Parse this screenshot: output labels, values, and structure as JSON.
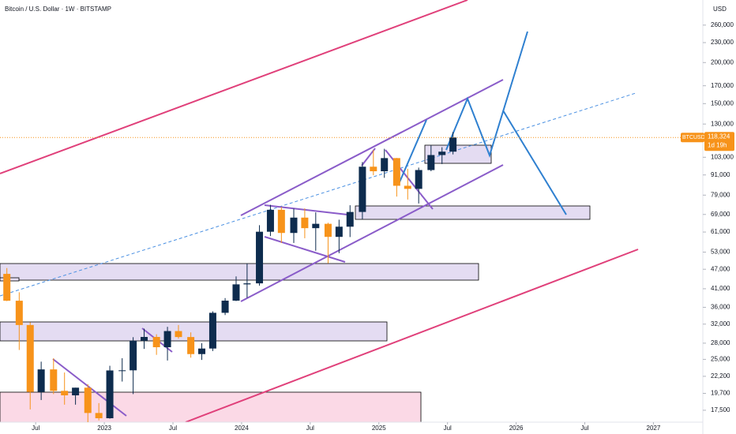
{
  "chart_data": {
    "type": "candlestick",
    "title": "Bitcoin / U.S. Dollar · 1W · BITSTAMP",
    "currency": "USD",
    "log_scale": true,
    "up_color": "#0e2c4e",
    "down_color": "#f7931a",
    "x": [
      2022.29,
      2022.38,
      2022.46,
      2022.54,
      2022.63,
      2022.71,
      2022.79,
      2022.88,
      2022.96,
      2023.04,
      2023.13,
      2023.21,
      2023.29,
      2023.38,
      2023.46,
      2023.54,
      2023.63,
      2023.71,
      2023.79,
      2023.88,
      2023.96,
      2024.04,
      2024.13,
      2024.21,
      2024.29,
      2024.38,
      2024.46,
      2024.54,
      2024.63,
      2024.71,
      2024.79,
      2024.88,
      2024.96,
      2025.04,
      2025.13,
      2025.21,
      2025.29,
      2025.38,
      2025.46,
      2025.54
    ],
    "open": [
      45500,
      37700,
      31800,
      19900,
      23300,
      20050,
      19430,
      20500,
      17170,
      16550,
      23130,
      23150,
      28480,
      29250,
      27220,
      30480,
      29230,
      25940,
      26970,
      34640,
      37720,
      42280,
      42580,
      61130,
      71290,
      60610,
      67490,
      62680,
      64620,
      58970,
      63330,
      70220,
      96410,
      93390,
      102400,
      84350,
      82550,
      94190,
      104610,
      107130
    ],
    "high": [
      47400,
      40000,
      32400,
      24600,
      25200,
      22800,
      20500,
      21000,
      18400,
      23900,
      25200,
      29200,
      31000,
      29800,
      31400,
      31800,
      30200,
      28000,
      35000,
      38400,
      44700,
      48900,
      64000,
      73800,
      72700,
      71900,
      72000,
      70000,
      65100,
      66500,
      73600,
      99600,
      108300,
      109300,
      102500,
      95000,
      95800,
      111900,
      110500,
      123000
    ],
    "low": [
      37600,
      26700,
      17600,
      18800,
      19600,
      18200,
      18200,
      15500,
      16300,
      16500,
      21400,
      19600,
      26900,
      25800,
      24800,
      28900,
      25300,
      24900,
      26500,
      34100,
      37600,
      38500,
      41900,
      59300,
      56500,
      56500,
      58400,
      53500,
      49000,
      52600,
      58900,
      66800,
      90800,
      89200,
      78200,
      76600,
      74500,
      93400,
      98200,
      105100
    ],
    "close": [
      37700,
      31800,
      19900,
      23300,
      20050,
      19430,
      20500,
      17170,
      16550,
      23130,
      23150,
      28480,
      29250,
      27220,
      30480,
      29230,
      25940,
      26970,
      34640,
      37720,
      42280,
      42580,
      61130,
      71290,
      60610,
      67490,
      62680,
      64620,
      58970,
      63330,
      70220,
      96410,
      93390,
      102400,
      84350,
      82550,
      94190,
      104610,
      107130,
      118324
    ],
    "xlim": [
      2022.24,
      2027.36
    ],
    "xticks": [
      {
        "value": 2022.5,
        "label": "Jul"
      },
      2023,
      {
        "value": 2023.5,
        "label": "Jul"
      },
      2024,
      {
        "value": 2024.5,
        "label": "Jul"
      },
      2025,
      {
        "value": 2025.5,
        "label": "Jul"
      },
      2026,
      {
        "value": 2026.5,
        "label": "Jul"
      },
      2027
    ],
    "ylim": [
      16100,
      310000
    ],
    "yticks": [
      {
        "value": 260000,
        "label": "260,000"
      },
      {
        "value": 230000,
        "label": "230,000"
      },
      {
        "value": 200000,
        "label": "200,000"
      },
      {
        "value": 170000,
        "label": "170,000"
      },
      {
        "value": 150000,
        "label": "150,000"
      },
      {
        "value": 130000,
        "label": "130,000"
      },
      {
        "value": 103000,
        "label": "103,000"
      },
      {
        "value": 91000,
        "label": "91,000"
      },
      {
        "value": 79000,
        "label": "79,000"
      },
      {
        "value": 69000,
        "label": "69,000"
      },
      {
        "value": 61000,
        "label": "61,000"
      },
      {
        "value": 53000,
        "label": "53,000"
      },
      {
        "value": 47000,
        "label": "47,000"
      },
      {
        "value": 41000,
        "label": "41,000"
      },
      {
        "value": 36000,
        "label": "36,000"
      },
      {
        "value": 32000,
        "label": "32,000"
      },
      {
        "value": 28000,
        "label": "28,000"
      },
      {
        "value": 25000,
        "label": "25,000"
      },
      {
        "value": 22200,
        "label": "22,200"
      },
      {
        "value": 19700,
        "label": "19,700"
      },
      {
        "value": 17500,
        "label": "17,500"
      }
    ],
    "price_tag": {
      "symbol": "BTCUSD",
      "value": 118324,
      "label": "118,324",
      "countdown": "1d 19h",
      "color": "#f7931a"
    }
  }
}
